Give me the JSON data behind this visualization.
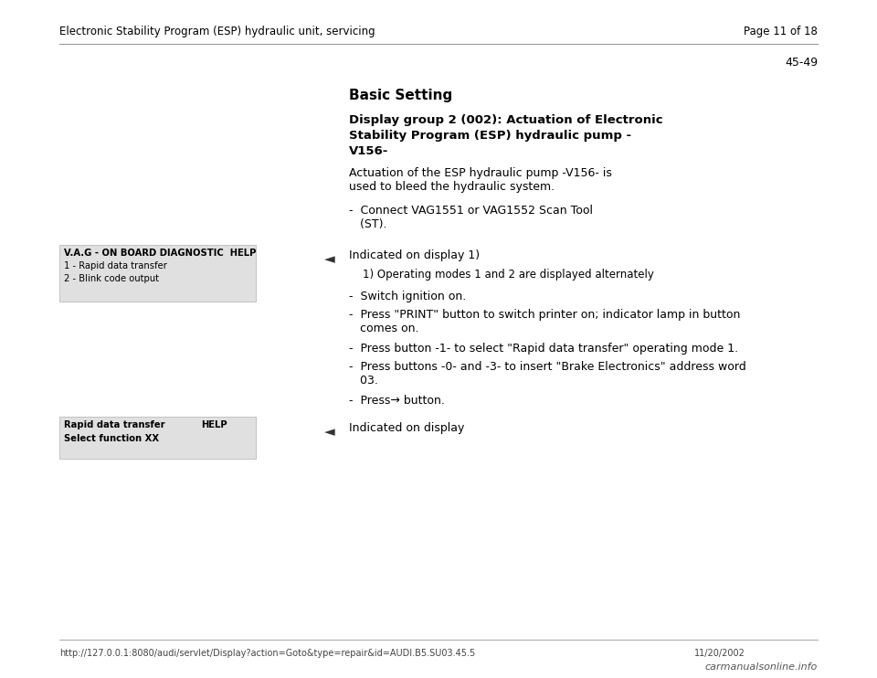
{
  "bg_color": "#ffffff",
  "header_text": "Electronic Stability Program (ESP) hydraulic unit, servicing",
  "page_text": "Page 11 of 18",
  "page_number": "45-49",
  "footer_url": "http://127.0.0.1:8080/audi/servlet/Display?action=Goto&type=repair&id=AUDI.B5.SU03.45.5",
  "footer_date": "11/20/2002",
  "footer_logo": "carmanualsonline.info",
  "section_title": "Basic Setting",
  "bold_heading_line1": "Display group 2 (002): Actuation of Electronic",
  "bold_heading_line2": "Stability Program (ESP) hydraulic pump -",
  "bold_heading_line3": "V156-",
  "para1_line1": "Actuation of the ESP hydraulic pump -V156- is",
  "para1_line2": "used to bleed the hydraulic system.",
  "bullet1_line1": "-  Connect VAG1551 or VAG1552 Scan Tool",
  "bullet1_line2": "   (ST).",
  "arrow_label1": "Indicated on display 1)",
  "footnote1": "1) Operating modes 1 and 2 are displayed alternately",
  "bullet2": "-  Switch ignition on.",
  "bullet3_line1": "-  Press \"PRINT\" button to switch printer on; indicator lamp in button",
  "bullet3_line2": "   comes on.",
  "bullet4": "-  Press button -1- to select \"Rapid data transfer\" operating mode 1.",
  "bullet5_line1": "-  Press buttons -0- and -3- to insert \"Brake Electronics\" address word",
  "bullet5_line2": "   03.",
  "bullet6": "-  Press→ button.",
  "arrow_label2": "Indicated on display",
  "box1_line1": "V.A.G - ON BOARD DIAGNOSTIC  HELP",
  "box1_line2": "1 - Rapid data transfer",
  "box1_line3": "2 - Blink code output",
  "box2_line1": "Rapid data transfer",
  "box2_line1_right": "HELP",
  "box2_line2": "Select function XX",
  "text_color": "#000000",
  "box_bg_color": "#e0e0e0",
  "header_line_color": "#999999",
  "arrow_char": "◄"
}
